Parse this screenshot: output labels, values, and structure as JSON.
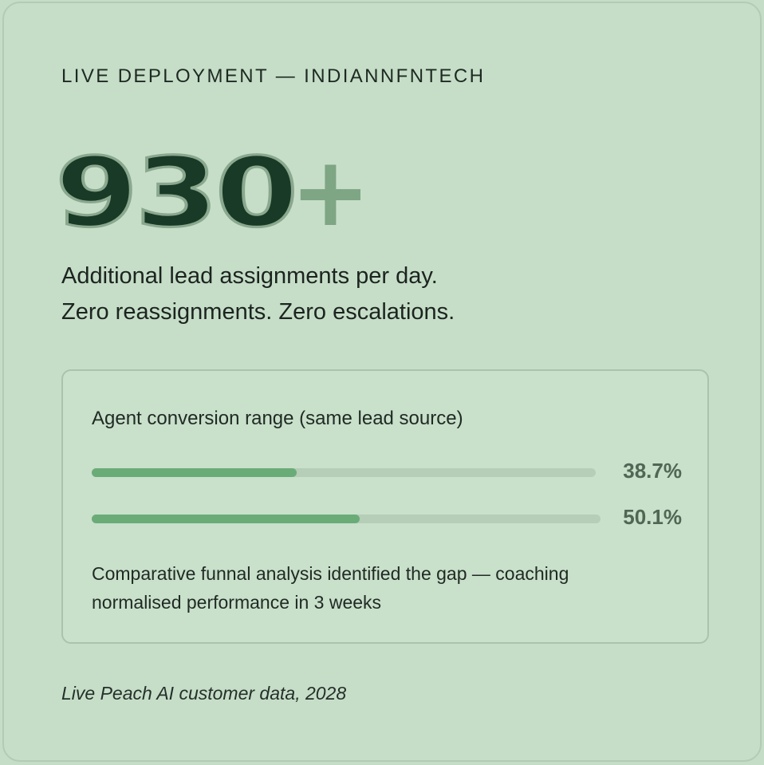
{
  "eyebrow": "LIVE DEPLOYMENT — INDIANNFNTECH",
  "headline": {
    "number": "930",
    "suffix": "+"
  },
  "subheadline": {
    "line1": "Additional lead assignments per day.",
    "line2": "Zero reassignments. Zero escalations."
  },
  "panel": {
    "title": "Agent conversion range (same lead source)",
    "bars": [
      {
        "value_label": "38.7%",
        "fill_fraction": 0.387
      },
      {
        "value_label": "50.1%",
        "fill_fraction": 0.501
      }
    ],
    "note": "Comparative funnal analysis identified the gap — coaching normalised performance in 3 weeks"
  },
  "footer": "Live Peach AI customer data, 2028",
  "colors": {
    "background": "#c6dec8",
    "headline_fill": "#183a26",
    "plus": "#7ea584",
    "bar_fill": "#6aac78",
    "bar_track": "#b6cdb8"
  }
}
